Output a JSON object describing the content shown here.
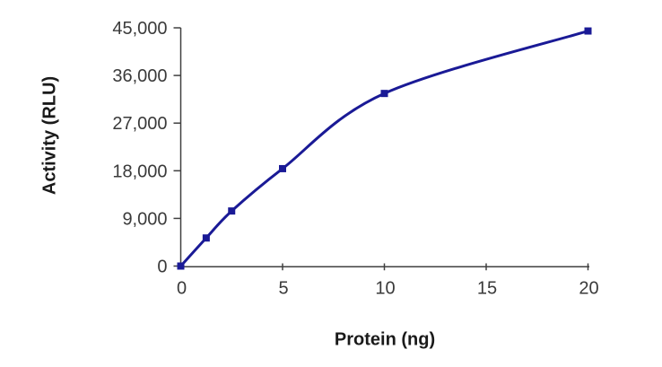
{
  "chart_data": {
    "type": "line",
    "title": "",
    "xlabel": "Protein (ng)",
    "ylabel": "Activity (RLU)",
    "xlim": [
      0,
      20
    ],
    "ylim": [
      0,
      45000
    ],
    "grid": false,
    "legend": null,
    "smooth": true,
    "line_color": "#1a1a96",
    "marker": "square",
    "marker_color": "#1a1a96",
    "axis_color": "#404040",
    "tick_label_color": "#3a3a3a",
    "x_ticks": [
      {
        "value": 0,
        "label": "0"
      },
      {
        "value": 5,
        "label": "5"
      },
      {
        "value": 10,
        "label": "10"
      },
      {
        "value": 15,
        "label": "15"
      },
      {
        "value": 20,
        "label": "20"
      }
    ],
    "y_ticks": [
      {
        "value": 0,
        "label": "0"
      },
      {
        "value": 9000,
        "label": "9,000"
      },
      {
        "value": 18000,
        "label": "18,000"
      },
      {
        "value": 27000,
        "label": "27,000"
      },
      {
        "value": 36000,
        "label": "36,000"
      },
      {
        "value": 45000,
        "label": "45,000"
      }
    ],
    "series": [
      {
        "name": "Activity",
        "points": [
          {
            "x": 0,
            "y": 0
          },
          {
            "x": 1.25,
            "y": 5300
          },
          {
            "x": 2.5,
            "y": 10400
          },
          {
            "x": 5,
            "y": 18400
          },
          {
            "x": 10,
            "y": 32600
          },
          {
            "x": 20,
            "y": 44400
          }
        ]
      }
    ]
  }
}
